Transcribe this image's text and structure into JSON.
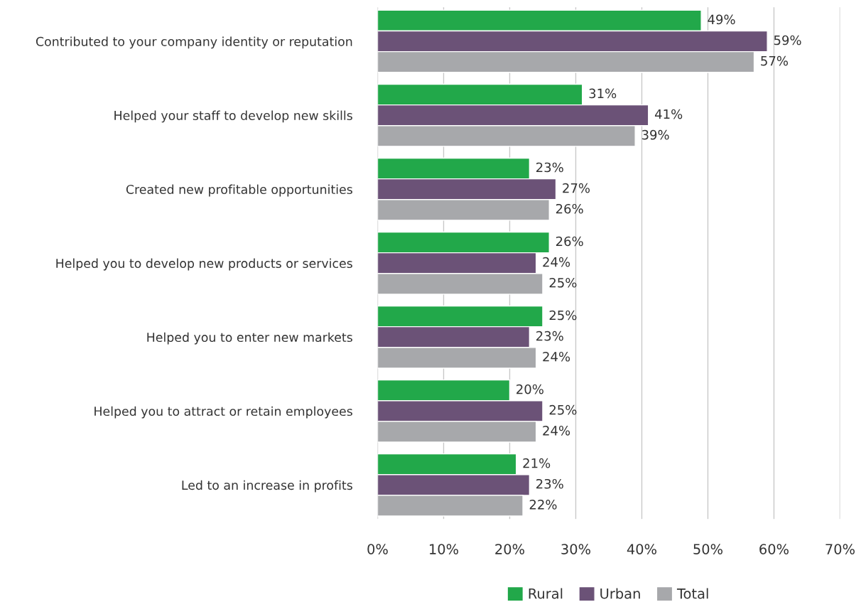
{
  "chart_data": {
    "type": "bar",
    "orientation": "horizontal",
    "categories": [
      "Contributed to your company identity or reputation",
      "Helped your staff to develop new skills",
      "Created new profitable opportunities",
      "Helped you to develop new products or services",
      "Helped you to enter new markets",
      "Helped you to attract or retain employees",
      "Led to an increase in profits"
    ],
    "series": [
      {
        "name": "Rural",
        "color": "#22a84a",
        "values": [
          49,
          31,
          23,
          26,
          25,
          20,
          21
        ],
        "value_labels": [
          "49%",
          "31%",
          "23%",
          "26%",
          "25%",
          "20%",
          "21%"
        ]
      },
      {
        "name": "Urban",
        "color": "#6b5277",
        "values": [
          59,
          41,
          27,
          24,
          23,
          25,
          23
        ],
        "value_labels": [
          "59%",
          "41%",
          "27%",
          "24%",
          "23%",
          "25%",
          "23%"
        ]
      },
      {
        "name": "Total",
        "color": "#a7a8ab",
        "values": [
          57,
          39,
          26,
          25,
          24,
          24,
          22
        ],
        "value_labels": [
          "57%",
          "39%",
          "26%",
          "25%",
          "24%",
          "24%",
          "22%"
        ]
      }
    ],
    "xlim": [
      0,
      70
    ],
    "xticks": [
      {
        "value": 0,
        "label": "0%"
      },
      {
        "value": 10,
        "label": "10%"
      },
      {
        "value": 20,
        "label": "20%"
      },
      {
        "value": 30,
        "label": "30%"
      },
      {
        "value": 40,
        "label": "40%"
      },
      {
        "value": 50,
        "label": "50%"
      },
      {
        "value": 60,
        "label": "60%"
      },
      {
        "value": 70,
        "label": "70%"
      }
    ],
    "grid": "x",
    "legend": "bottom"
  }
}
